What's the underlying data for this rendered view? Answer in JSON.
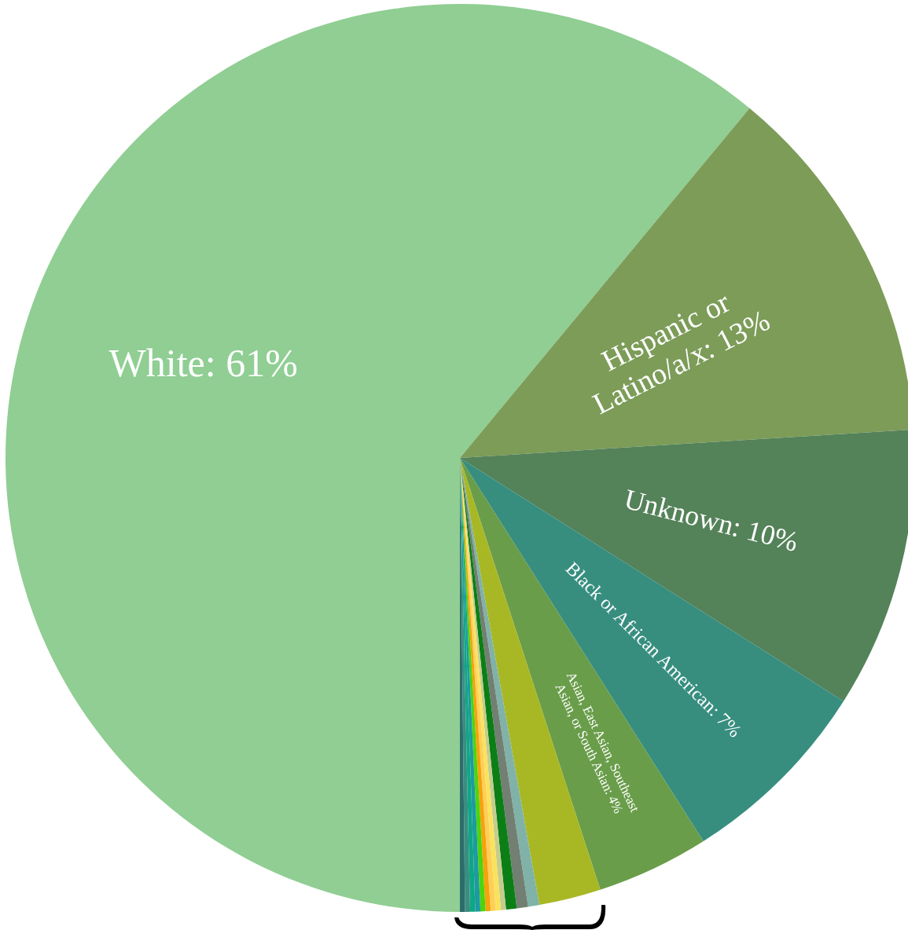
{
  "chart_data": {
    "type": "pie",
    "categories": [
      "White",
      "Hispanic or Latino/a/x",
      "Unknown",
      "Black or African American",
      "Asian, East Asian, Southeast Asian, or South Asian",
      null,
      null,
      null,
      null,
      null,
      null,
      null,
      null,
      null,
      null,
      null,
      null,
      null
    ],
    "values": [
      61,
      13,
      10,
      7,
      4,
      2.2,
      0.4,
      0.4,
      0.38,
      0.18,
      0.18,
      0.18,
      0.18,
      0.18,
      0.18,
      0.18,
      0.18,
      0.18
    ],
    "value_labels": [
      "61%",
      "13%",
      "10%",
      "7%",
      "4%",
      null,
      null,
      null,
      null,
      null,
      null,
      null,
      null,
      null,
      null,
      null,
      null,
      null
    ],
    "colors": [
      "#90ce93",
      "#7c9c58",
      "#548259",
      "#378e7f",
      "#699d4a",
      "#a8b825",
      "#80b2a8",
      "#727f72",
      "#0b7f16",
      "#c5cc8d",
      "#f9e35c",
      "#fecf57",
      "#f5a20c",
      "#4dd40f",
      "#1e9aa0",
      "#0ea786",
      "#3a8e80",
      "#2b6c6c"
    ]
  }
}
